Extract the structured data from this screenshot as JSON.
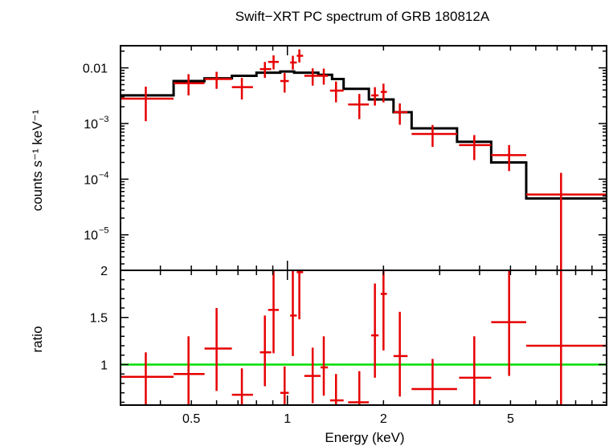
{
  "chart_data": [
    {
      "type": "step+errorbar",
      "title": "Swift−XRT PC spectrum of GRB 180812A",
      "xlabel": "",
      "ylabel": "counts s⁻¹ keV⁻¹",
      "xscale": "log",
      "yscale": "log",
      "xlim": [
        0.3,
        10
      ],
      "ylim": [
        2.3e-06,
        0.025
      ],
      "y_tick_labels": [
        {
          "v": 0.01,
          "label": "0.01"
        },
        {
          "v": 0.001,
          "base": "10",
          "exp": "−3"
        },
        {
          "v": 0.0001,
          "base": "10",
          "exp": "−4"
        },
        {
          "v": 1e-05,
          "base": "10",
          "exp": "−5"
        }
      ],
      "model_color": "#000000",
      "model_steps": [
        {
          "x0": 0.3,
          "x1": 0.44,
          "y": 0.0032
        },
        {
          "x0": 0.44,
          "x1": 0.55,
          "y": 0.0058
        },
        {
          "x0": 0.55,
          "x1": 0.67,
          "y": 0.0065
        },
        {
          "x0": 0.67,
          "x1": 0.8,
          "y": 0.0072
        },
        {
          "x0": 0.8,
          "x1": 0.95,
          "y": 0.0082
        },
        {
          "x0": 0.95,
          "x1": 1.05,
          "y": 0.0086
        },
        {
          "x0": 1.05,
          "x1": 1.25,
          "y": 0.0082
        },
        {
          "x0": 1.25,
          "x1": 1.38,
          "y": 0.0075
        },
        {
          "x0": 1.38,
          "x1": 1.5,
          "y": 0.0063
        },
        {
          "x0": 1.5,
          "x1": 1.8,
          "y": 0.0042
        },
        {
          "x0": 1.8,
          "x1": 2.15,
          "y": 0.0027
        },
        {
          "x0": 2.15,
          "x1": 2.45,
          "y": 0.0016
        },
        {
          "x0": 2.45,
          "x1": 3.4,
          "y": 0.00082
        },
        {
          "x0": 3.4,
          "x1": 4.35,
          "y": 0.00047
        },
        {
          "x0": 4.35,
          "x1": 5.6,
          "y": 0.0002
        },
        {
          "x0": 5.6,
          "x1": 10,
          "y": 4.5e-05
        }
      ],
      "data_color": "#e60000",
      "points": [
        {
          "x": 0.36,
          "xlo": 0.3,
          "xhi": 0.44,
          "y": 0.0028,
          "ylo": 0.0011,
          "yhi": 0.0046
        },
        {
          "x": 0.49,
          "xlo": 0.44,
          "xhi": 0.55,
          "y": 0.0053,
          "ylo": 0.0032,
          "yhi": 0.0077
        },
        {
          "x": 0.6,
          "xlo": 0.55,
          "xhi": 0.67,
          "y": 0.0063,
          "ylo": 0.0042,
          "yhi": 0.0085
        },
        {
          "x": 0.72,
          "xlo": 0.67,
          "xhi": 0.78,
          "y": 0.0045,
          "ylo": 0.0027,
          "yhi": 0.0066
        },
        {
          "x": 0.85,
          "xlo": 0.82,
          "xhi": 0.89,
          "y": 0.0095,
          "ylo": 0.0066,
          "yhi": 0.0128
        },
        {
          "x": 0.905,
          "xlo": 0.87,
          "xhi": 0.94,
          "y": 0.0128,
          "ylo": 0.0094,
          "yhi": 0.0168
        },
        {
          "x": 0.98,
          "xlo": 0.95,
          "xhi": 1.01,
          "y": 0.0058,
          "ylo": 0.0036,
          "yhi": 0.0081
        },
        {
          "x": 1.04,
          "xlo": 1.02,
          "xhi": 1.07,
          "y": 0.0125,
          "ylo": 0.0093,
          "yhi": 0.0165
        },
        {
          "x": 1.09,
          "xlo": 1.07,
          "xhi": 1.12,
          "y": 0.0165,
          "ylo": 0.0125,
          "yhi": 0.0215
        },
        {
          "x": 1.2,
          "xlo": 1.13,
          "xhi": 1.27,
          "y": 0.0072,
          "ylo": 0.0048,
          "yhi": 0.0098
        },
        {
          "x": 1.3,
          "xlo": 1.27,
          "xhi": 1.34,
          "y": 0.0072,
          "ylo": 0.005,
          "yhi": 0.0097
        },
        {
          "x": 1.42,
          "xlo": 1.36,
          "xhi": 1.5,
          "y": 0.0039,
          "ylo": 0.0024,
          "yhi": 0.0057
        },
        {
          "x": 1.68,
          "xlo": 1.55,
          "xhi": 1.8,
          "y": 0.0022,
          "ylo": 0.0012,
          "yhi": 0.0034
        },
        {
          "x": 1.88,
          "xlo": 1.83,
          "xhi": 1.93,
          "y": 0.0032,
          "ylo": 0.0021,
          "yhi": 0.0045
        },
        {
          "x": 2.0,
          "xlo": 1.96,
          "xhi": 2.05,
          "y": 0.0037,
          "ylo": 0.0024,
          "yhi": 0.0052
        },
        {
          "x": 2.25,
          "xlo": 2.15,
          "xhi": 2.38,
          "y": 0.0016,
          "ylo": 0.00095,
          "yhi": 0.0023
        },
        {
          "x": 2.85,
          "xlo": 2.45,
          "xhi": 3.4,
          "y": 0.00065,
          "ylo": 0.00038,
          "yhi": 0.00094
        },
        {
          "x": 3.85,
          "xlo": 3.45,
          "xhi": 4.35,
          "y": 0.00041,
          "ylo": 0.00022,
          "yhi": 0.00062
        },
        {
          "x": 4.95,
          "xlo": 4.35,
          "xhi": 5.6,
          "y": 0.00027,
          "ylo": 0.00014,
          "yhi": 0.00041
        },
        {
          "x": 7.2,
          "xlo": 5.6,
          "xhi": 10,
          "y": 5.3e-05,
          "ylo": 2.3e-06,
          "yhi": 0.00013
        }
      ]
    },
    {
      "type": "errorbar",
      "title": "",
      "xlabel": "Energy (keV)",
      "ylabel": "ratio",
      "xscale": "log",
      "yscale": "linear",
      "xlim": [
        0.3,
        10
      ],
      "ylim": [
        0.57,
        2.0
      ],
      "x_tick_labels": [
        {
          "v": 0.5,
          "label": "0.5"
        },
        {
          "v": 1,
          "label": "1"
        },
        {
          "v": 2,
          "label": "2"
        },
        {
          "v": 5,
          "label": "5"
        }
      ],
      "y_tick_labels": [
        {
          "v": 1,
          "label": "1"
        },
        {
          "v": 1.5,
          "label": "1.5"
        },
        {
          "v": 2,
          "label": "2"
        }
      ],
      "reference_line": {
        "y": 1,
        "color": "#00dd00"
      },
      "data_color": "#e60000",
      "points": [
        {
          "x": 0.36,
          "xlo": 0.3,
          "xhi": 0.44,
          "y": 0.87,
          "ylo": 0.57,
          "yhi": 1.13
        },
        {
          "x": 0.49,
          "xlo": 0.44,
          "xhi": 0.55,
          "y": 0.9,
          "ylo": 0.57,
          "yhi": 1.3
        },
        {
          "x": 0.6,
          "xlo": 0.55,
          "xhi": 0.67,
          "y": 1.17,
          "ylo": 0.72,
          "yhi": 1.6
        },
        {
          "x": 0.72,
          "xlo": 0.67,
          "xhi": 0.78,
          "y": 0.68,
          "ylo": 0.57,
          "yhi": 0.96
        },
        {
          "x": 0.85,
          "xlo": 0.82,
          "xhi": 0.89,
          "y": 1.13,
          "ylo": 0.77,
          "yhi": 1.52
        },
        {
          "x": 0.905,
          "xlo": 0.87,
          "xhi": 0.94,
          "y": 1.58,
          "ylo": 1.12,
          "yhi": 2.0
        },
        {
          "x": 0.98,
          "xlo": 0.95,
          "xhi": 1.01,
          "y": 0.7,
          "ylo": 0.57,
          "yhi": 0.98
        },
        {
          "x": 1.04,
          "xlo": 1.02,
          "xhi": 1.07,
          "y": 1.52,
          "ylo": 1.09,
          "yhi": 2.0
        },
        {
          "x": 1.09,
          "xlo": 1.07,
          "xhi": 1.12,
          "y": 1.98,
          "ylo": 1.48,
          "yhi": 2.0
        },
        {
          "x": 1.2,
          "xlo": 1.13,
          "xhi": 1.27,
          "y": 0.88,
          "ylo": 0.59,
          "yhi": 1.18
        },
        {
          "x": 1.3,
          "xlo": 1.27,
          "xhi": 1.34,
          "y": 0.97,
          "ylo": 0.67,
          "yhi": 1.3
        },
        {
          "x": 1.42,
          "xlo": 1.36,
          "xhi": 1.5,
          "y": 0.62,
          "ylo": 0.57,
          "yhi": 0.9
        },
        {
          "x": 1.68,
          "xlo": 1.55,
          "xhi": 1.8,
          "y": 0.6,
          "ylo": 0.57,
          "yhi": 0.93
        },
        {
          "x": 1.88,
          "xlo": 1.83,
          "xhi": 1.93,
          "y": 1.31,
          "ylo": 0.86,
          "yhi": 1.86
        },
        {
          "x": 2.0,
          "xlo": 1.96,
          "xhi": 2.05,
          "y": 1.75,
          "ylo": 1.15,
          "yhi": 2.0
        },
        {
          "x": 2.25,
          "xlo": 2.15,
          "xhi": 2.38,
          "y": 1.09,
          "ylo": 0.66,
          "yhi": 1.56
        },
        {
          "x": 2.85,
          "xlo": 2.45,
          "xhi": 3.4,
          "y": 0.74,
          "ylo": 0.57,
          "yhi": 1.06
        },
        {
          "x": 3.85,
          "xlo": 3.45,
          "xhi": 4.35,
          "y": 0.86,
          "ylo": 0.57,
          "yhi": 1.3
        },
        {
          "x": 4.95,
          "xlo": 4.35,
          "xhi": 5.6,
          "y": 1.45,
          "ylo": 0.88,
          "yhi": 2.0
        },
        {
          "x": 7.2,
          "xlo": 5.6,
          "xhi": 10,
          "y": 1.2,
          "ylo": 0.57,
          "yhi": 2.0
        }
      ]
    }
  ]
}
